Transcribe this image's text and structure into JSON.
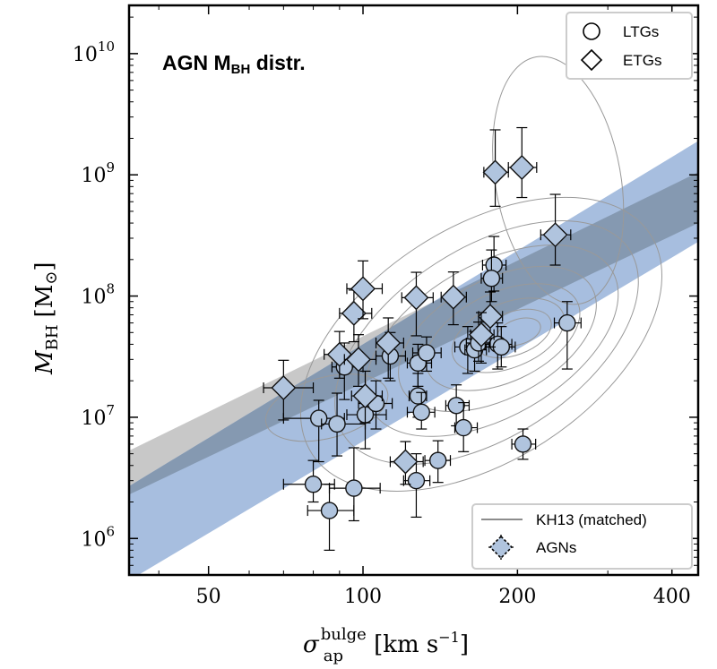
{
  "chart_data": {
    "type": "scatter",
    "title": "AGN M",
    "title_sub": "BH",
    "title_suffix": " distr.",
    "xlabel_main": "σ",
    "xlabel_sub": "ap",
    "xlabel_sup": "bulge",
    "xlabel_units": "[km s",
    "xlabel_units_sup": "−1",
    "xlabel_units_close": "]",
    "ylabel_main": "M",
    "ylabel_sub": "BH",
    "ylabel_units": "[M",
    "ylabel_units_sym": "⊙",
    "ylabel_units_close": "]",
    "xscale": "log",
    "yscale": "log",
    "xlim": [
      35,
      450
    ],
    "ylim": [
      500000,
      25000000000
    ],
    "xticks": [
      50,
      100,
      200,
      400
    ],
    "xtick_labels": [
      "50",
      "100",
      "200",
      "400"
    ],
    "yticks": [
      1000000,
      10000000,
      100000000,
      1000000000,
      10000000000
    ],
    "ytick_base": "10",
    "ytick_exponents": [
      "6",
      "7",
      "8",
      "9",
      "10"
    ],
    "legend_top": {
      "placement": "top-right",
      "entries": [
        {
          "label": "LTGs",
          "marker": "circle"
        },
        {
          "label": "ETGs",
          "marker": "diamond"
        }
      ]
    },
    "legend_bottom": {
      "placement": "bottom-right",
      "entries": [
        {
          "label": "KH13 (matched)",
          "marker": "line"
        },
        {
          "label": "AGNs",
          "marker": "diamond-dashed"
        }
      ]
    },
    "colors": {
      "marker_fill": "#b0c4de",
      "marker_edge": "#111111",
      "band_gray": "#c8c8c8",
      "band_blue": "#a7bedf",
      "band_overlap": "#8599b1",
      "contour": "#999999",
      "legend_edge": "#cccccc"
    },
    "bands": [
      {
        "name": "gray",
        "x": [
          35,
          450
        ],
        "lower": [
          2300000,
          400000000
        ],
        "upper": [
          5300000,
          1050000000
        ]
      },
      {
        "name": "blue",
        "x": [
          35,
          450
        ],
        "lower": [
          450000,
          280000000
        ],
        "upper": [
          2700000,
          1900000000
        ]
      }
    ],
    "series": [
      {
        "name": "LTGs",
        "marker": "circle",
        "points": [
          {
            "x": 80,
            "y": 2800000,
            "xerr": [
              10,
              8
            ],
            "yerr": [
              0.8,
              1.6
            ]
          },
          {
            "x": 86,
            "y": 1700000,
            "xerr": [
              8,
              10
            ],
            "yerr": [
              0.9,
              1.1
            ]
          },
          {
            "x": 82,
            "y": 9800000,
            "xerr": [
              12,
              10
            ],
            "yerr": [
              5.5,
              4
            ]
          },
          {
            "x": 89,
            "y": 8800000,
            "xerr": [
              6,
              12
            ],
            "yerr": [
              4,
              7
            ]
          },
          {
            "x": 92,
            "y": 26000000,
            "xerr": [
              5,
              8
            ],
            "yerr": [
              12,
              15
            ]
          },
          {
            "x": 96,
            "y": 2600000,
            "xerr": [
              10,
              12
            ],
            "yerr": [
              1.2,
              3
            ]
          },
          {
            "x": 101,
            "y": 10500000,
            "xerr": [
              8,
              10
            ],
            "yerr": [
              5,
              6
            ]
          },
          {
            "x": 106,
            "y": 13000000,
            "xerr": [
              8,
              8
            ],
            "yerr": [
              5,
              7
            ]
          },
          {
            "x": 113,
            "y": 32000000,
            "xerr": [
              7,
              8
            ],
            "yerr": [
              12,
              18
            ]
          },
          {
            "x": 127,
            "y": 3000000,
            "xerr": [
              7,
              8
            ],
            "yerr": [
              1.5,
              2
            ]
          },
          {
            "x": 128,
            "y": 28000000,
            "xerr": [
              6,
              8
            ],
            "yerr": [
              10,
              12
            ]
          },
          {
            "x": 128,
            "y": 15000000,
            "xerr": [
              5,
              5
            ],
            "yerr": [
              5,
              8
            ]
          },
          {
            "x": 130,
            "y": 11000000,
            "xerr": [
              8,
              8
            ],
            "yerr": [
              3,
              5
            ]
          },
          {
            "x": 133,
            "y": 34000000,
            "xerr": [
              8,
              9
            ],
            "yerr": [
              10,
              12
            ]
          },
          {
            "x": 140,
            "y": 4400000,
            "xerr": [
              8,
              8
            ],
            "yerr": [
              1.5,
              2
            ]
          },
          {
            "x": 152,
            "y": 12500000,
            "xerr": [
              7,
              9
            ],
            "yerr": [
              4,
              6
            ]
          },
          {
            "x": 157,
            "y": 8200000,
            "xerr": [
              6,
              10
            ],
            "yerr": [
              3,
              5
            ]
          },
          {
            "x": 160,
            "y": 38000000,
            "xerr": [
              9,
              10
            ],
            "yerr": [
              15,
              18
            ]
          },
          {
            "x": 165,
            "y": 36000000,
            "xerr": [
              7,
              9
            ],
            "yerr": [
              12,
              15
            ]
          },
          {
            "x": 168,
            "y": 41000000,
            "xerr": [
              9,
              10
            ],
            "yerr": [
              12,
              20
            ]
          },
          {
            "x": 180,
            "y": 180000000,
            "xerr": [
              9,
              10
            ],
            "yerr": [
              70,
              130
            ]
          },
          {
            "x": 178,
            "y": 140000000,
            "xerr": [
              8,
              9
            ],
            "yerr": [
              50,
              100
            ]
          },
          {
            "x": 183,
            "y": 40000000,
            "xerr": [
              10,
              12
            ],
            "yerr": [
              15,
              20
            ]
          },
          {
            "x": 186,
            "y": 38000000,
            "xerr": [
              10,
              12
            ],
            "yerr": [
              12,
              18
            ]
          },
          {
            "x": 205,
            "y": 6000000,
            "xerr": [
              10,
              12
            ],
            "yerr": [
              1.5,
              2
            ]
          },
          {
            "x": 250,
            "y": 60000000,
            "xerr": [
              14,
              16
            ],
            "yerr": [
              35,
              30
            ]
          }
        ]
      },
      {
        "name": "ETGs",
        "marker": "diamond",
        "points": [
          {
            "x": 70,
            "y": 17500000,
            "xerr": [
              6,
              10
            ],
            "yerr": [
              8,
              12
            ]
          },
          {
            "x": 90,
            "y": 33000000,
            "xerr": [
              6,
              8
            ],
            "yerr": [
              12,
              18
            ]
          },
          {
            "x": 96,
            "y": 72000000,
            "xerr": [
              6,
              8
            ],
            "yerr": [
              30,
              40
            ]
          },
          {
            "x": 100,
            "y": 115000000,
            "xerr": [
              7,
              9
            ],
            "yerr": [
              50,
              80
            ]
          },
          {
            "x": 98,
            "y": 30000000,
            "xerr": [
              6,
              8
            ],
            "yerr": [
              12,
              18
            ]
          },
          {
            "x": 101,
            "y": 15000000,
            "xerr": [
              6,
              8
            ],
            "yerr": [
              6,
              9
            ]
          },
          {
            "x": 112,
            "y": 41000000,
            "xerr": [
              6,
              8
            ],
            "yerr": [
              20,
              25
            ]
          },
          {
            "x": 121,
            "y": 4300000,
            "xerr": [
              8,
              10
            ],
            "yerr": [
              1.5,
              2
            ]
          },
          {
            "x": 127,
            "y": 97000000,
            "xerr": [
              8,
              10
            ],
            "yerr": [
              50,
              60
            ]
          },
          {
            "x": 150,
            "y": 98000000,
            "xerr": [
              8,
              9
            ],
            "yerr": [
              40,
              60
            ]
          },
          {
            "x": 177,
            "y": 68000000,
            "xerr": [
              9,
              10
            ],
            "yerr": [
              30,
              40
            ]
          },
          {
            "x": 170,
            "y": 48000000,
            "xerr": [
              8,
              10
            ],
            "yerr": [
              20,
              25
            ]
          },
          {
            "x": 181,
            "y": 1050000000,
            "xerr": [
              9,
              11
            ],
            "yerr": [
              500,
              1300
            ]
          },
          {
            "x": 204,
            "y": 1150000000,
            "xerr": [
              12,
              14
            ],
            "yerr": [
              500,
              1300
            ]
          },
          {
            "x": 237,
            "y": 320000000,
            "xerr": [
              15,
              17
            ],
            "yerr": [
              140,
              370
            ]
          }
        ]
      }
    ]
  }
}
